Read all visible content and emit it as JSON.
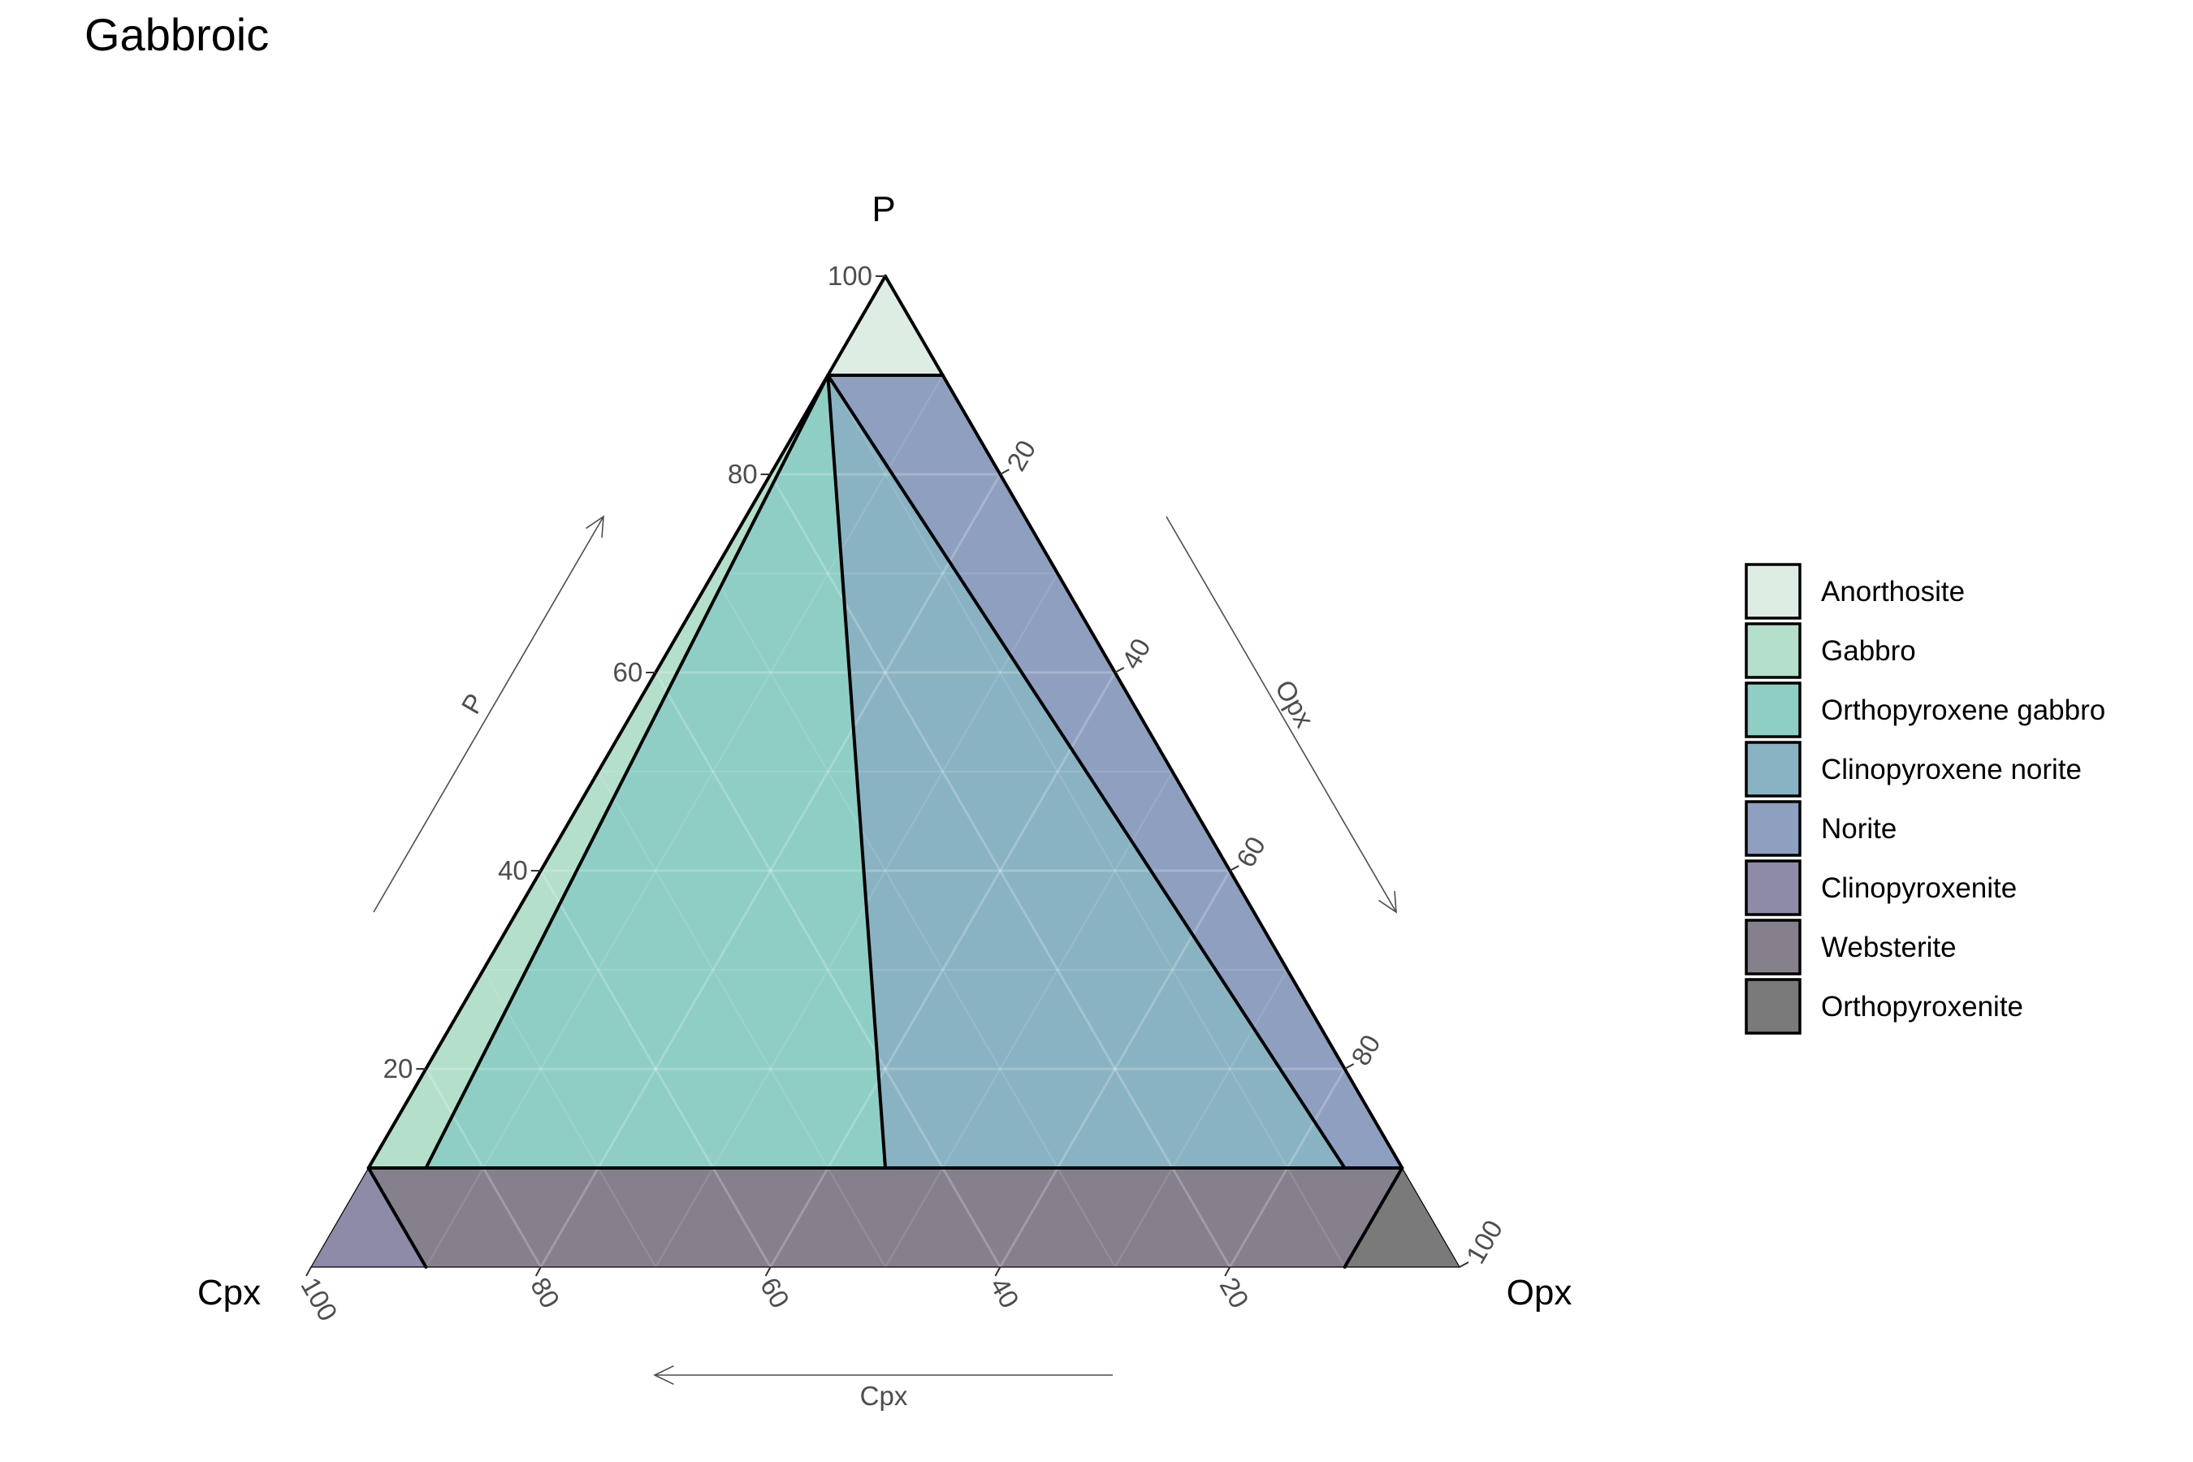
{
  "chart_data": {
    "type": "ternary",
    "title": "Gabbroic",
    "vertices": {
      "top": "P",
      "left": "Cpx",
      "right": "Opx"
    },
    "axis_titles": {
      "P": "P",
      "Opx": "Opx",
      "Cpx": "Cpx"
    },
    "ticks": [
      20,
      40,
      60,
      80,
      100
    ],
    "tick_labels": [
      "20",
      "40",
      "60",
      "80",
      "100"
    ],
    "grid": true,
    "legend_position": "right",
    "fields": [
      {
        "name": "Anorthosite",
        "color": "#DEEDE3",
        "vertices": [
          [
            100,
            0,
            0
          ],
          [
            90,
            0,
            10
          ],
          [
            90,
            10,
            0
          ]
        ]
      },
      {
        "name": "Gabbro",
        "color": "#B3DFCB",
        "vertices": [
          [
            90,
            0,
            10
          ],
          [
            10,
            0,
            90
          ],
          [
            10,
            5,
            85
          ],
          [
            90,
            0,
            10
          ]
        ]
      },
      {
        "name": "Orthopyroxene gabbro",
        "color": "#8ECEC5",
        "vertices": [
          [
            90,
            0,
            10
          ],
          [
            10,
            5,
            85
          ],
          [
            10,
            45,
            45
          ]
        ]
      },
      {
        "name": "Clinopyroxene norite",
        "color": "#89B3C2",
        "vertices": [
          [
            90,
            0,
            10
          ],
          [
            10,
            45,
            45
          ],
          [
            10,
            85,
            5
          ]
        ]
      },
      {
        "name": "Norite",
        "color": "#8E9FBF",
        "vertices": [
          [
            90,
            0,
            10
          ],
          [
            90,
            10,
            0
          ],
          [
            10,
            90,
            0
          ],
          [
            10,
            85,
            5
          ]
        ]
      },
      {
        "name": "Clinopyroxenite",
        "color": "#8E8BA8",
        "vertices": [
          [
            0,
            0,
            100
          ],
          [
            10,
            0,
            90
          ],
          [
            0,
            10,
            90
          ]
        ]
      },
      {
        "name": "Websterite",
        "color": "#867F8C",
        "vertices": [
          [
            10,
            0,
            90
          ],
          [
            10,
            90,
            0
          ],
          [
            0,
            90,
            10
          ],
          [
            0,
            10,
            90
          ]
        ]
      },
      {
        "name": "Orthopyroxenite",
        "color": "#7A7A7A",
        "vertices": [
          [
            10,
            90,
            0
          ],
          [
            0,
            100,
            0
          ],
          [
            0,
            90,
            10
          ]
        ]
      }
    ],
    "vertex_order": [
      "P",
      "Opx",
      "Cpx"
    ]
  }
}
